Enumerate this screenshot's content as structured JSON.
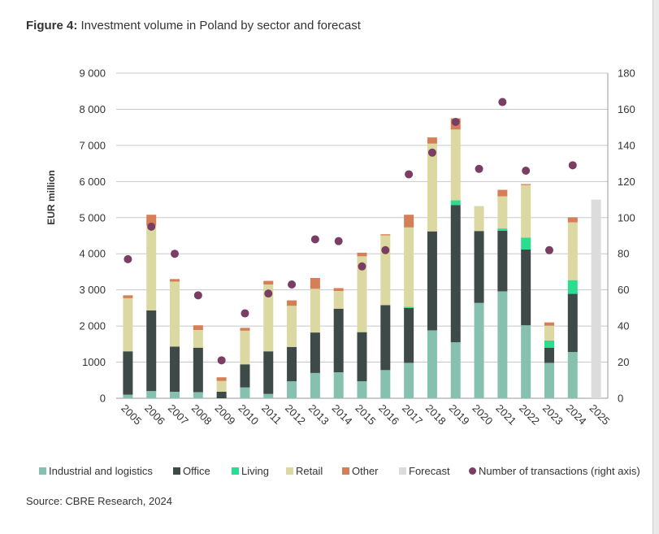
{
  "title": {
    "bold": "Figure 4:",
    "rest": " Investment volume in Poland by sector and forecast"
  },
  "source": "Source: CBRE Research, 2024",
  "colors": {
    "Industrial and logistics": "#86c0ae",
    "Office": "#3d4a47",
    "Living": "#2bdd8e",
    "Retail": "#dcd8a1",
    "Other": "#d67e57",
    "Forecast": "#dcdcdc",
    "Number of transactions (right axis)": "#7a3d63"
  },
  "chart_data": {
    "type": "bar",
    "stacked": true,
    "categories": [
      "2005",
      "2006",
      "2007",
      "2008",
      "2009",
      "2010",
      "2011",
      "2012",
      "2013",
      "2014",
      "2015",
      "2016",
      "2017",
      "2018",
      "2019",
      "2020",
      "2021",
      "2022",
      "2023",
      "2024",
      "2025"
    ],
    "ylabel": "EUR million",
    "ylim": [
      0,
      9000
    ],
    "y_ticks": [
      "0",
      "1000",
      "2 000",
      "3 000",
      "4 000",
      "5 000",
      "6 000",
      "7 000",
      "8 000",
      "9 000"
    ],
    "y2lim": [
      0,
      180
    ],
    "y2_ticks": [
      "0",
      "20",
      "40",
      "60",
      "80",
      "100",
      "120",
      "140",
      "160",
      "180"
    ],
    "grid": true,
    "legend_position": "bottom",
    "series": [
      {
        "name": "Industrial and logistics",
        "values": [
          100,
          200,
          180,
          170,
          0,
          300,
          120,
          470,
          700,
          720,
          470,
          780,
          980,
          1880,
          1550,
          2640,
          2960,
          2020,
          980,
          1280,
          0
        ]
      },
      {
        "name": "Office",
        "values": [
          1200,
          2230,
          1250,
          1230,
          180,
          640,
          1180,
          950,
          1120,
          1760,
          1360,
          1800,
          1520,
          2740,
          3800,
          1990,
          1680,
          2100,
          420,
          1610,
          0
        ]
      },
      {
        "name": "Living",
        "values": [
          0,
          0,
          0,
          0,
          0,
          0,
          0,
          0,
          0,
          0,
          0,
          0,
          30,
          0,
          130,
          0,
          60,
          330,
          200,
          380,
          0
        ]
      },
      {
        "name": "Retail",
        "values": [
          1470,
          2350,
          1800,
          490,
          300,
          930,
          1850,
          1140,
          1210,
          490,
          2100,
          1930,
          2200,
          2430,
          1960,
          690,
          890,
          1450,
          410,
          1600,
          0
        ]
      },
      {
        "name": "Other",
        "values": [
          80,
          300,
          70,
          130,
          100,
          80,
          100,
          150,
          300,
          80,
          100,
          30,
          350,
          170,
          310,
          0,
          180,
          30,
          90,
          140,
          0
        ]
      },
      {
        "name": "Forecast",
        "values": [
          0,
          0,
          0,
          0,
          0,
          0,
          0,
          0,
          0,
          0,
          0,
          0,
          0,
          0,
          0,
          0,
          0,
          0,
          0,
          0,
          5500
        ]
      }
    ],
    "scatter_series": {
      "name": "Number of transactions (right axis)",
      "axis": "right",
      "values": [
        77,
        95,
        80,
        57,
        21,
        47,
        58,
        63,
        88,
        87,
        73,
        82,
        124,
        136,
        153,
        127,
        164,
        126,
        82,
        129,
        null
      ]
    }
  }
}
